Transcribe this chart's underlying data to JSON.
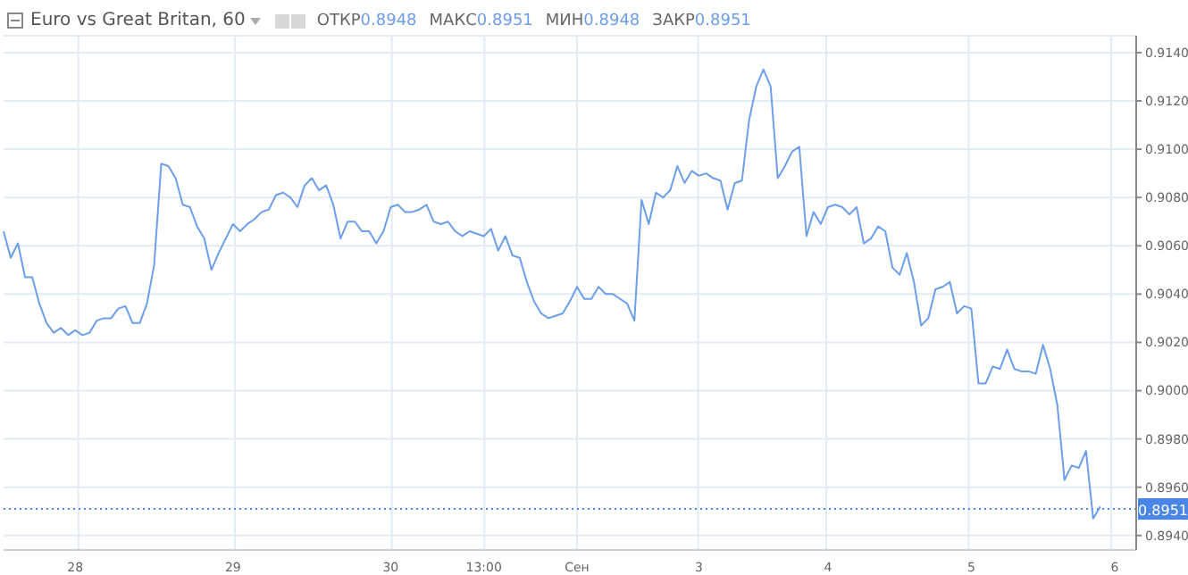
{
  "chart_data": {
    "type": "line",
    "title": "Euro vs Great Britan, 60",
    "annotations": [
      "ОТКР0.8948",
      "МАКС0.8951",
      "МИН0.8948",
      "ЗАКР0.8951"
    ],
    "categories": [
      null,
      null,
      null,
      null,
      null,
      null,
      null,
      null,
      null,
      null,
      "28",
      null,
      null,
      null,
      null,
      null,
      null,
      null,
      null,
      null,
      null,
      null,
      null,
      null,
      null,
      null,
      null,
      null,
      null,
      null,
      null,
      null,
      "29",
      null,
      null,
      null,
      null,
      null,
      null,
      null,
      null,
      null,
      null,
      null,
      null,
      null,
      null,
      null,
      null,
      null,
      null,
      null,
      null,
      null,
      "30",
      null,
      null,
      null,
      null,
      null,
      null,
      null,
      null,
      null,
      null,
      null,
      null,
      "13:00",
      null,
      null,
      null,
      null,
      null,
      null,
      null,
      null,
      null,
      null,
      null,
      null,
      "Сен",
      null,
      null,
      null,
      null,
      null,
      null,
      null,
      null,
      null,
      null,
      null,
      null,
      null,
      null,
      null,
      null,
      "3",
      null,
      null,
      null,
      null,
      null,
      null,
      null,
      null,
      null,
      null,
      null,
      null,
      null,
      null,
      null,
      null,
      null,
      "4",
      null,
      null,
      null,
      null,
      null,
      null,
      null,
      null,
      null,
      null,
      null,
      null,
      null,
      null,
      null,
      null,
      null,
      null,
      null,
      "5",
      null,
      null,
      null,
      null,
      null,
      null,
      null,
      null,
      null,
      null,
      null,
      null,
      null,
      null,
      null,
      null,
      null,
      null,
      null,
      "6",
      null,
      null,
      null
    ],
    "series": [
      {
        "color": "#6d9eeb",
        "values": [
          0.9066,
          0.9055,
          0.9061,
          0.9047,
          0.9047,
          0.9036,
          0.9028,
          0.9024,
          0.9026,
          0.9023,
          0.9025,
          0.9023,
          0.9024,
          0.9029,
          0.903,
          0.903,
          0.9034,
          0.9035,
          0.9028,
          0.9028,
          0.9036,
          0.9052,
          0.9094,
          0.9093,
          0.9088,
          0.9077,
          0.9076,
          0.9068,
          0.9063,
          0.905,
          0.9057,
          0.9063,
          0.9069,
          0.9066,
          0.9069,
          0.9071,
          0.9074,
          0.9075,
          0.9081,
          0.9082,
          0.908,
          0.9076,
          0.9085,
          0.9088,
          0.9083,
          0.9085,
          0.9077,
          0.9063,
          0.907,
          0.907,
          0.9066,
          0.9066,
          0.9061,
          0.9066,
          0.9076,
          0.9077,
          0.9074,
          0.9074,
          0.9075,
          0.9077,
          0.907,
          0.9069,
          0.907,
          0.9066,
          0.9064,
          0.9066,
          0.9065,
          0.9064,
          0.9067,
          0.9058,
          0.9064,
          0.9056,
          0.9055,
          0.9045,
          0.9037,
          0.9032,
          0.903,
          0.9031,
          0.9032,
          0.9037,
          0.9043,
          0.9038,
          0.9038,
          0.9043,
          0.904,
          0.904,
          0.9038,
          0.9036,
          0.9029,
          0.9079,
          0.9069,
          0.9082,
          0.908,
          0.9083,
          0.9093,
          0.9086,
          0.9091,
          0.9089,
          0.909,
          0.9088,
          0.9087,
          0.9075,
          0.9086,
          0.9087,
          0.9112,
          0.9126,
          0.9133,
          0.9126,
          0.9088,
          0.9093,
          0.9099,
          0.9101,
          0.9064,
          0.9074,
          0.9069,
          0.9076,
          0.9077,
          0.9076,
          0.9073,
          0.9076,
          0.9061,
          0.9063,
          0.9068,
          0.9066,
          0.9051,
          0.9048,
          0.9057,
          0.9045,
          0.9027,
          0.903,
          0.9042,
          0.9043,
          0.9045,
          0.9032,
          0.9035,
          0.9034,
          0.9003,
          0.9003,
          0.901,
          0.9009,
          0.9017,
          0.9009,
          0.9008,
          0.9008,
          0.9007,
          0.9019,
          0.9009,
          0.8994,
          0.8963,
          0.8969,
          0.8968,
          0.8975,
          0.8947,
          0.8952,
          null,
          null,
          null,
          null,
          null
        ]
      }
    ],
    "ylim": [
      0.8934,
      0.9147
    ],
    "yticks": [
      {
        "value": 0.894,
        "label": "0.8940"
      },
      {
        "value": 0.896,
        "label": "0.8960"
      },
      {
        "value": 0.898,
        "label": "0.8980"
      },
      {
        "value": 0.9,
        "label": "0.9000"
      },
      {
        "value": 0.902,
        "label": "0.9020"
      },
      {
        "value": 0.904,
        "label": "0.9040"
      },
      {
        "value": 0.906,
        "label": "0.9060"
      },
      {
        "value": 0.908,
        "label": "0.9080"
      },
      {
        "value": 0.91,
        "label": "0.9100"
      },
      {
        "value": 0.912,
        "label": "0.9120"
      },
      {
        "value": 0.914,
        "label": "0.9140"
      }
    ],
    "ref_lines": [
      {
        "axis": "y",
        "value": 0.8951,
        "label": "0.8951",
        "color": "#4a86e8",
        "line_style": "dotted"
      }
    ],
    "grid": true,
    "legend": false,
    "marker": "none",
    "line_style": "solid"
  }
}
